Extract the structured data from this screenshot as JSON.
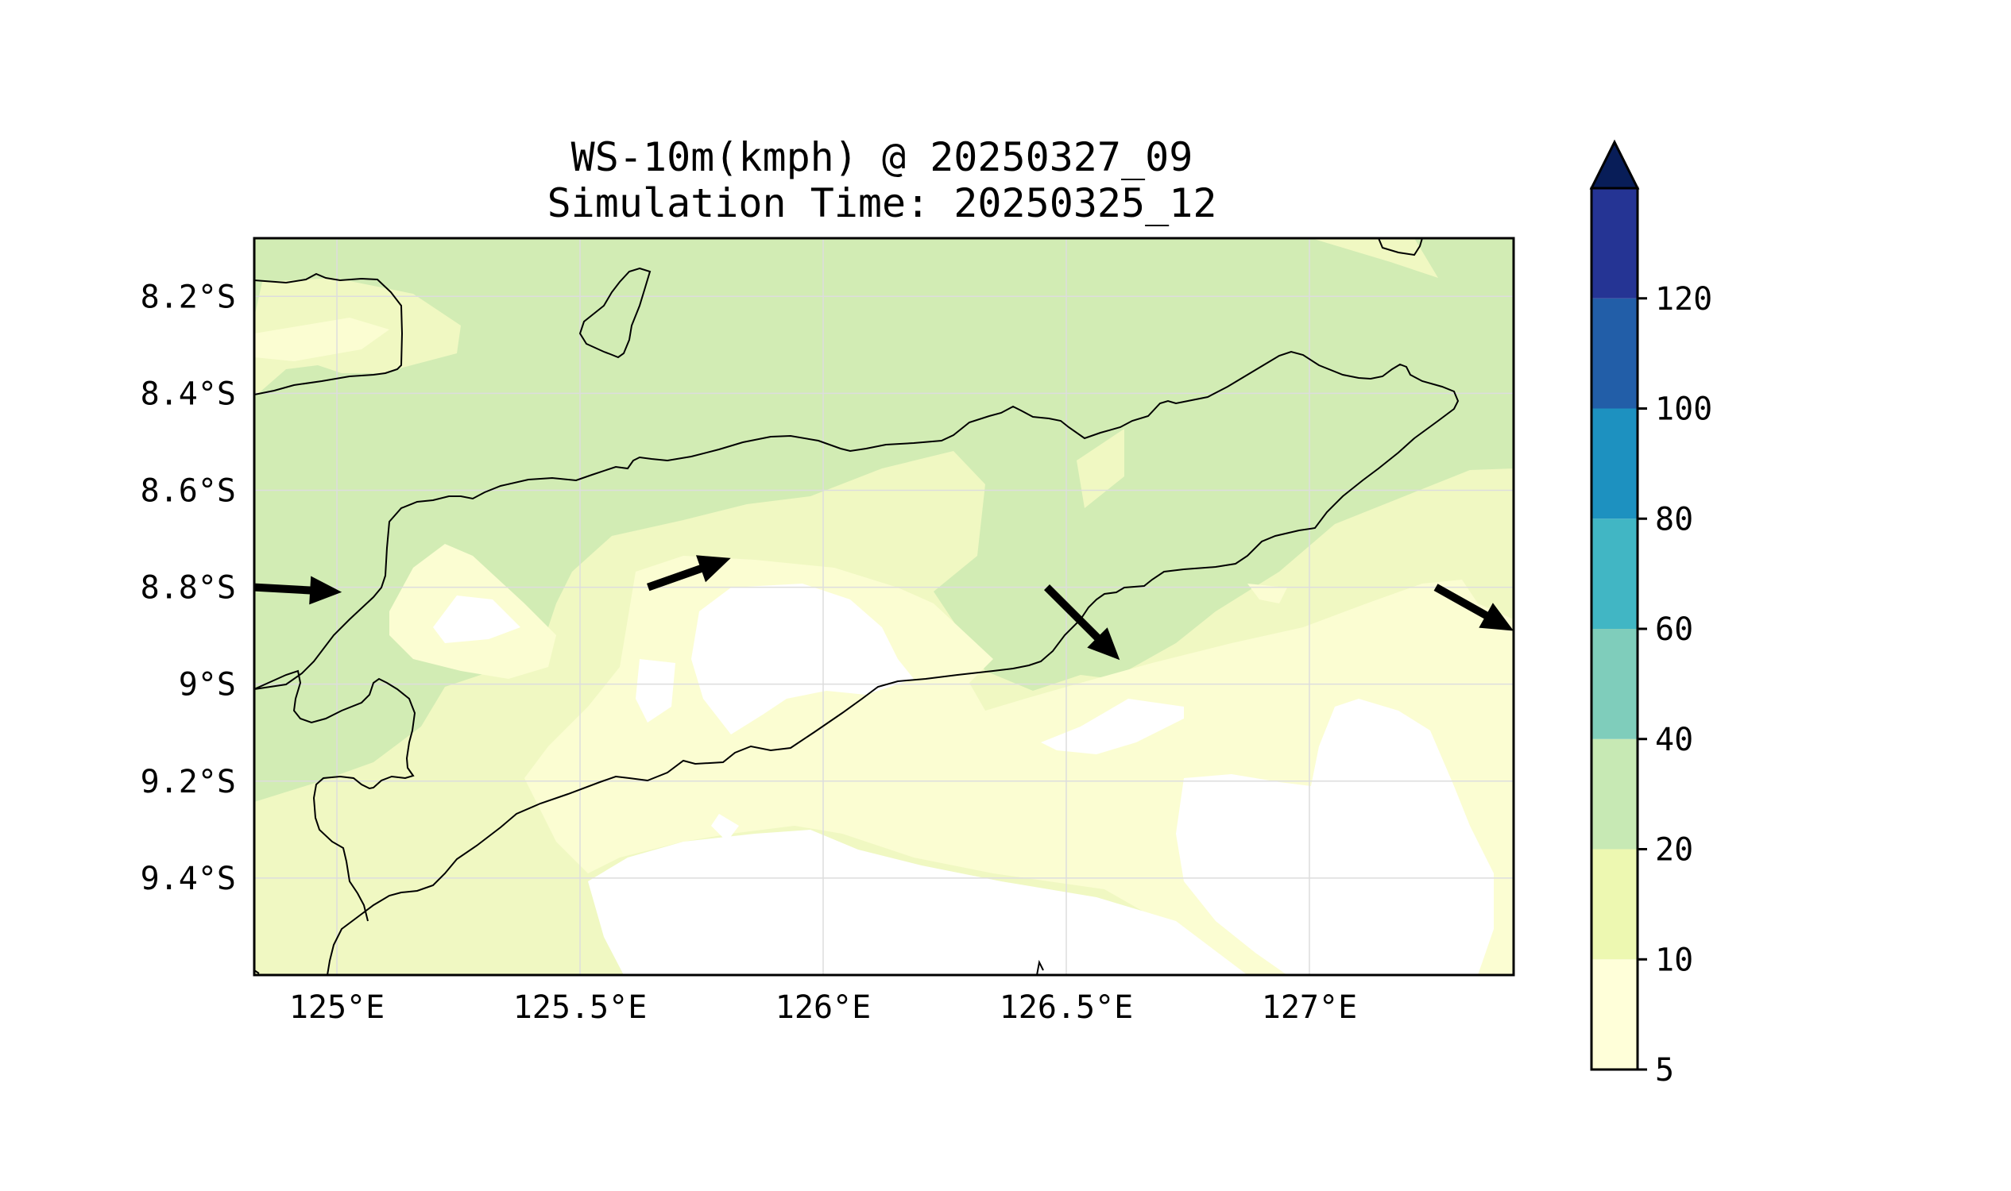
{
  "title": {
    "line1": "WS-10m(kmph) @ 20250327_09",
    "line2": "Simulation Time: 20250325_12"
  },
  "map": {
    "lat_range": [
      -9.6,
      -8.08
    ],
    "lon_range": [
      124.83,
      127.42
    ],
    "lat_ticks": [
      {
        "value": -8.2,
        "label": "8.2°S"
      },
      {
        "value": -8.4,
        "label": "8.4°S"
      },
      {
        "value": -8.6,
        "label": "8.6°S"
      },
      {
        "value": -8.8,
        "label": "8.8°S"
      },
      {
        "value": -9.0,
        "label": "9°S"
      },
      {
        "value": -9.2,
        "label": "9.2°S"
      },
      {
        "value": -9.4,
        "label": "9.4°S"
      }
    ],
    "lon_ticks": [
      {
        "value": 125.0,
        "label": "125°E"
      },
      {
        "value": 125.5,
        "label": "125.5°E"
      },
      {
        "value": 126.0,
        "label": "126°E"
      },
      {
        "value": 126.5,
        "label": "126.5°E"
      },
      {
        "value": 127.0,
        "label": "127°E"
      }
    ],
    "gridlines": true,
    "wind_vectors": [
      {
        "lon1": 124.83,
        "lat1": -8.8,
        "lon2": 125.01,
        "lat2": -8.81
      },
      {
        "lon1": 125.64,
        "lat1": -8.8,
        "lon2": 125.81,
        "lat2": -8.74
      },
      {
        "lon1": 126.46,
        "lat1": -8.8,
        "lon2": 126.61,
        "lat2": -8.95
      },
      {
        "lon1": 127.26,
        "lat1": -8.8,
        "lon2": 127.42,
        "lat2": -8.89
      }
    ]
  },
  "colorbar": {
    "levels": [
      5,
      10,
      20,
      40,
      60,
      80,
      100,
      120
    ],
    "tick_labels": [
      "5",
      "10",
      "20",
      "40",
      "60",
      "80",
      "100",
      "120"
    ],
    "colors": [
      "#ffffd9",
      "#edf8b1",
      "#c7e9b4",
      "#7fcdbb",
      "#41b6c4",
      "#1d91c0",
      "#225ea8",
      "#253494"
    ],
    "extend_color": "#081d58",
    "extend": "max"
  },
  "palette": {
    "white": "#ffffff",
    "c5_10": "#fbfdd2",
    "c10_20": "#f0f8c2",
    "c20_40": "#d2ecb4",
    "coast": "#000000",
    "grid": "#dddddd"
  }
}
